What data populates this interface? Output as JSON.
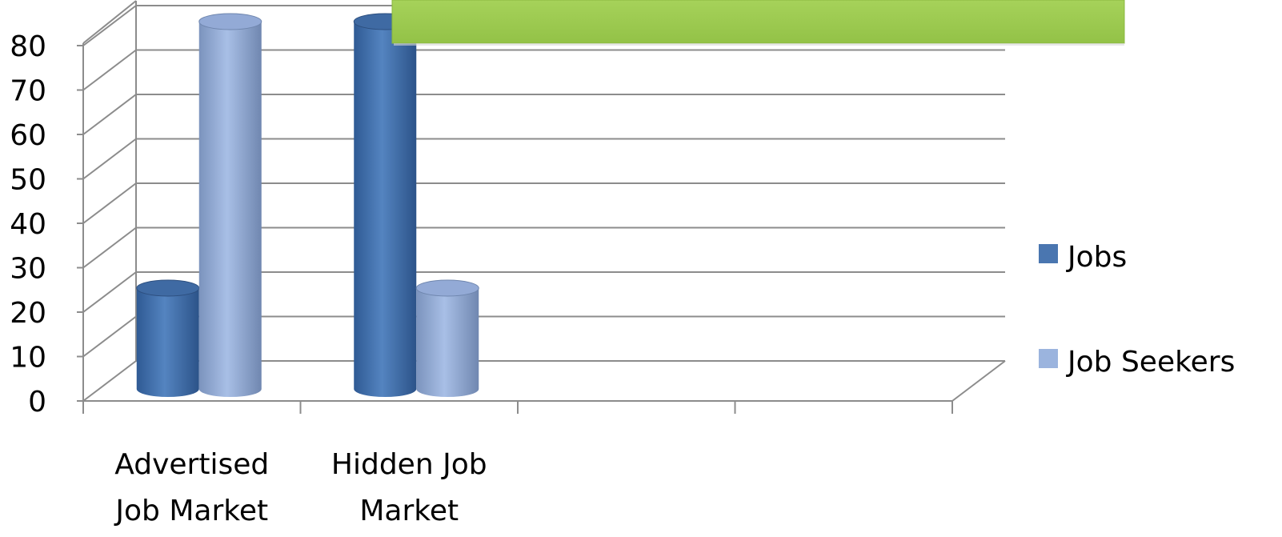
{
  "chart_data": {
    "type": "bar",
    "title": "",
    "xlabel": "",
    "ylabel": "",
    "categories": [
      [
        "Advertised",
        "Job Market"
      ],
      [
        "Hidden Job",
        "Market"
      ]
    ],
    "category_slots": 4,
    "series": [
      {
        "name": "Jobs",
        "values": [
          20,
          80
        ]
      },
      {
        "name": "Job Seekers",
        "values": [
          80,
          20
        ]
      }
    ],
    "ylim": [
      0,
      80
    ],
    "yticks": [
      0,
      10,
      20,
      30,
      40,
      50,
      60,
      70,
      80
    ],
    "grid": true,
    "legend_position": "right",
    "three_d": true,
    "bar_shape": "cylinder",
    "colors": {
      "Jobs": "#4a76b0",
      "Job Seekers": "#9bb4de",
      "overlay_banner": "#9fcd50"
    }
  }
}
